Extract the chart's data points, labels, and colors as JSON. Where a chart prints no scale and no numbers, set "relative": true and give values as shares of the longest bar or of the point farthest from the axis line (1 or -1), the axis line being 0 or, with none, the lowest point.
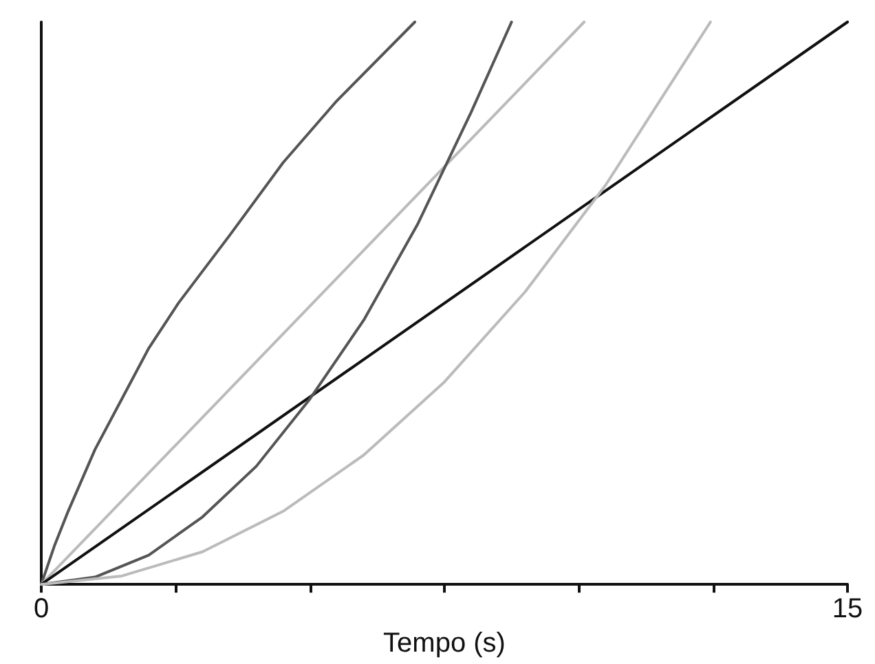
{
  "chart_data": {
    "type": "line",
    "xlabel": "Tempo (s)",
    "relative": true,
    "xlim": [
      0,
      15
    ],
    "xticks": [
      0,
      {
        "value": 2.5,
        "label": null
      },
      {
        "value": 5,
        "label": null
      },
      {
        "value": 7.5,
        "label": null
      },
      {
        "value": 10,
        "label": null
      },
      {
        "value": 12.5,
        "label": null
      },
      15
    ],
    "grid": false,
    "marker": "none",
    "line_style": "solid",
    "series": [
      {
        "color": "#555555",
        "x": [
          0,
          0.25,
          0.5,
          1,
          1.5,
          2,
          2.55,
          3.5,
          4.5,
          5.5,
          6.95
        ],
        "values": [
          0,
          0.07,
          0.13,
          0.24,
          0.33,
          0.42,
          0.5,
          0.62,
          0.75,
          0.86,
          1
        ]
      },
      {
        "color": "#bbbbbb",
        "x": [
          0,
          10.1
        ],
        "values": [
          0,
          1
        ]
      },
      {
        "color": "#111111",
        "x": [
          0,
          15
        ],
        "values": [
          0,
          1
        ]
      },
      {
        "color": "#555555",
        "x": [
          0,
          1,
          2,
          3,
          4,
          5,
          6,
          7,
          8,
          8.75
        ],
        "values": [
          0,
          0.013,
          0.052,
          0.12,
          0.21,
          0.33,
          0.47,
          0.64,
          0.84,
          1
        ]
      },
      {
        "color": "#bbbbbb",
        "x": [
          0,
          1.5,
          3,
          4.5,
          6,
          7.5,
          9,
          10.5,
          12.45
        ],
        "values": [
          0,
          0.015,
          0.058,
          0.13,
          0.23,
          0.36,
          0.52,
          0.71,
          1
        ]
      }
    ]
  }
}
